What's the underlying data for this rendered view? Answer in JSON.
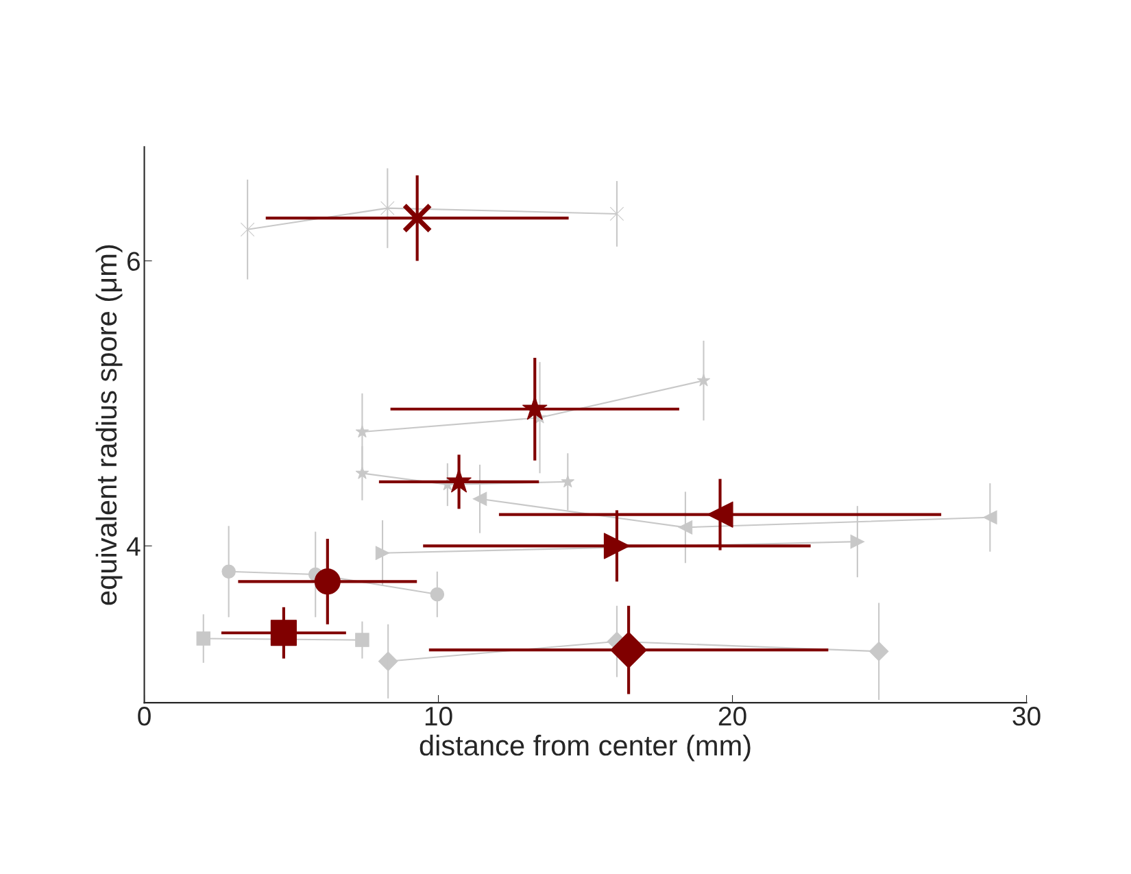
{
  "chart_data": {
    "type": "scatter",
    "xlabel": "distance from center (mm)",
    "ylabel": "equivalent radius spore (μm)",
    "xlim": [
      0,
      30
    ],
    "ylim": [
      2.9,
      6.8
    ],
    "xticks": [
      0,
      10,
      20,
      30
    ],
    "yticks": [
      4,
      6
    ],
    "grid": false,
    "series": [
      {
        "type": "line",
        "color": "#c8c8c8",
        "marker": "cross",
        "x": [
          3.51,
          8.27,
          16.07
        ],
        "values": [
          6.22,
          6.37,
          6.33
        ],
        "errors": [
          0.35,
          0.28,
          0.23
        ]
      },
      {
        "type": "line",
        "color": "#c8c8c8",
        "marker": "star",
        "x": [
          7.41,
          13.45,
          19.02
        ],
        "values": [
          4.8,
          4.9,
          5.16
        ],
        "errors": [
          0.27,
          0.39,
          0.28
        ]
      },
      {
        "type": "line",
        "color": "#c8c8c8",
        "marker": "star",
        "x": [
          7.41,
          10.31,
          14.4
        ],
        "values": [
          4.51,
          4.43,
          4.45
        ],
        "errors": [
          0.19,
          0.15,
          0.2
        ]
      },
      {
        "type": "line",
        "color": "#c8c8c8",
        "marker": "triangle-left",
        "x": [
          11.41,
          18.4,
          28.76
        ],
        "values": [
          4.33,
          4.13,
          4.2
        ],
        "errors": [
          0.24,
          0.25,
          0.24
        ]
      },
      {
        "type": "line",
        "color": "#c8c8c8",
        "marker": "triangle-right",
        "x": [
          8.1,
          24.25
        ],
        "values": [
          3.95,
          4.03
        ],
        "errors": [
          0.23,
          0.25
        ]
      },
      {
        "type": "line",
        "color": "#c8c8c8",
        "marker": "circle",
        "x": [
          2.87,
          5.82,
          9.96
        ],
        "values": [
          3.82,
          3.8,
          3.66
        ],
        "errors": [
          0.32,
          0.3,
          0.16
        ]
      },
      {
        "type": "line",
        "color": "#c8c8c8",
        "marker": "square",
        "x": [
          2.01,
          7.41
        ],
        "values": [
          3.35,
          3.34
        ],
        "errors": [
          0.17,
          0.13
        ]
      },
      {
        "type": "line",
        "color": "#c8c8c8",
        "marker": "diamond",
        "x": [
          8.29,
          16.07,
          24.98
        ],
        "values": [
          3.19,
          3.33,
          3.26
        ],
        "errors": [
          0.26,
          0.25,
          0.34
        ]
      },
      {
        "color": "#800000",
        "marker": "cross",
        "x": [
          9.28
        ],
        "values": [
          6.3
        ],
        "errors": [
          0.3
        ],
        "xerrors": [
          5.15
        ]
      },
      {
        "color": "#800000",
        "marker": "star",
        "x": [
          13.28
        ],
        "values": [
          4.96
        ],
        "errors": [
          0.36
        ],
        "xerrors": [
          4.91
        ]
      },
      {
        "color": "#800000",
        "marker": "star",
        "x": [
          10.7
        ],
        "values": [
          4.45
        ],
        "errors": [
          0.19
        ],
        "xerrors": [
          2.72
        ]
      },
      {
        "color": "#800000",
        "marker": "triangle-left",
        "x": [
          19.58
        ],
        "values": [
          4.22
        ],
        "errors": [
          0.25
        ],
        "xerrors": [
          7.52
        ]
      },
      {
        "color": "#800000",
        "marker": "triangle-right",
        "x": [
          16.07
        ],
        "values": [
          4.0
        ],
        "errors": [
          0.25
        ],
        "xerrors": [
          6.59
        ]
      },
      {
        "color": "#800000",
        "marker": "circle",
        "x": [
          6.23
        ],
        "values": [
          3.75
        ],
        "errors": [
          0.3
        ],
        "xerrors": [
          3.04
        ]
      },
      {
        "color": "#800000",
        "marker": "square",
        "x": [
          4.74
        ],
        "values": [
          3.39
        ],
        "errors": [
          0.18
        ],
        "xerrors": [
          2.12
        ]
      },
      {
        "color": "#800000",
        "marker": "diamond",
        "x": [
          16.47
        ],
        "values": [
          3.27
        ],
        "errors": [
          0.31
        ],
        "xerrors": [
          6.79
        ]
      }
    ]
  }
}
